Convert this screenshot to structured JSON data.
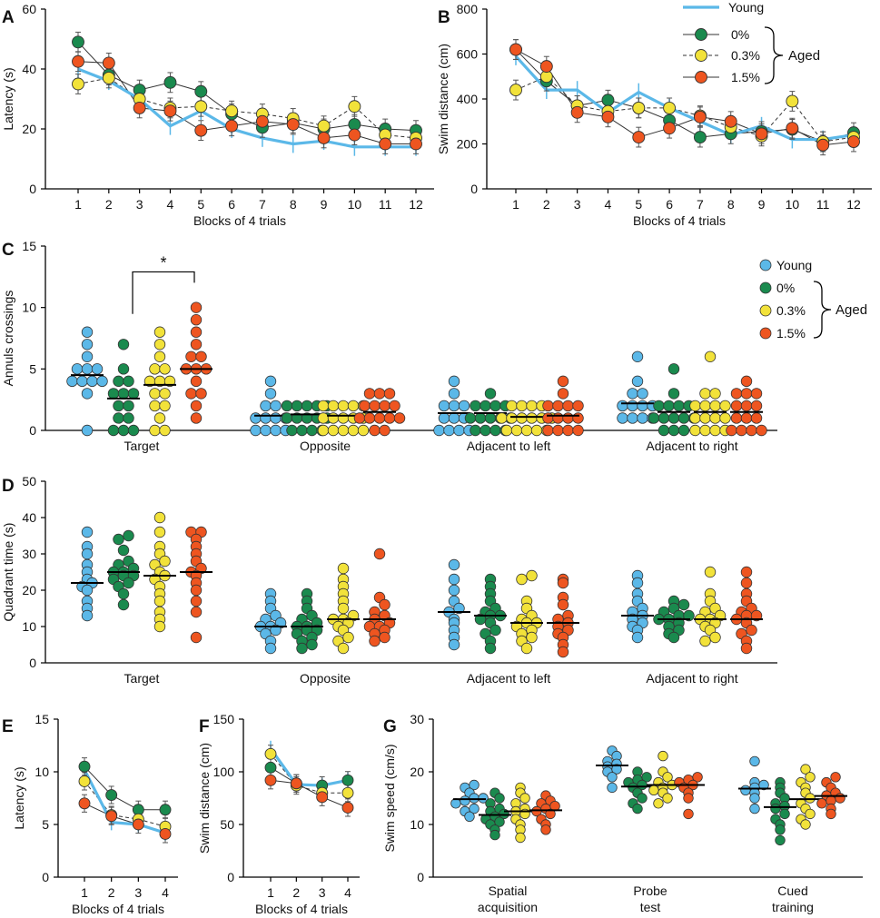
{
  "colors": {
    "young": "#5bb8e8",
    "aged0": "#1a8a4e",
    "aged03": "#f2e23a",
    "aged15": "#ee5520",
    "axis": "#000000",
    "text": "#111111"
  },
  "legend": {
    "young": "Young",
    "aged0": "0%",
    "aged03": "0.3%",
    "aged15": "1.5%",
    "aged_label": "Aged"
  },
  "chart_data": [
    {
      "panel": "A",
      "type": "line",
      "xlabel": "Blocks of 4 trials",
      "ylabel": "Latency (s)",
      "x": [
        1,
        2,
        3,
        4,
        5,
        6,
        7,
        8,
        9,
        10,
        11,
        12
      ],
      "ylim": [
        0,
        60
      ],
      "yticks": [
        0,
        20,
        40,
        60
      ],
      "series": [
        {
          "name": "Young",
          "values": [
            40,
            36,
            30,
            21,
            26,
            20,
            17,
            15,
            16,
            14,
            14,
            14
          ]
        },
        {
          "name": "0%",
          "values": [
            49,
            38,
            33,
            35.5,
            32.5,
            25,
            20.5,
            22,
            20,
            21.5,
            20,
            19.5
          ]
        },
        {
          "name": "0.3%",
          "values": [
            35,
            37,
            30,
            27,
            27.5,
            26,
            25,
            23.5,
            21,
            27.5,
            18,
            17
          ]
        },
        {
          "name": "1.5%",
          "values": [
            42.5,
            42,
            27,
            26,
            19.5,
            21,
            22.5,
            21.5,
            17,
            18,
            15,
            15
          ]
        }
      ]
    },
    {
      "panel": "B",
      "type": "line",
      "xlabel": "Blocks of 4 trials",
      "ylabel": "Swim distance (cm)",
      "x": [
        1,
        2,
        3,
        4,
        5,
        6,
        7,
        8,
        9,
        10,
        11,
        12
      ],
      "ylim": [
        0,
        800
      ],
      "yticks": [
        0,
        200,
        400,
        600,
        800
      ],
      "series": [
        {
          "name": "Young",
          "values": [
            590,
            440,
            440,
            340,
            430,
            360,
            300,
            240,
            280,
            220,
            220,
            240
          ]
        },
        {
          "name": "0%",
          "values": [
            620,
            480,
            370,
            395,
            360,
            305,
            230,
            245,
            255,
            265,
            210,
            250
          ]
        },
        {
          "name": "0.3%",
          "values": [
            440,
            500,
            370,
            345,
            360,
            360,
            325,
            275,
            235,
            390,
            210,
            230
          ]
        },
        {
          "name": "1.5%",
          "values": [
            620,
            545,
            340,
            320,
            230,
            270,
            320,
            300,
            245,
            270,
            195,
            210
          ]
        }
      ]
    },
    {
      "panel": "C",
      "type": "scatter",
      "ylabel": "Annuls crossings",
      "categories": [
        "Target",
        "Opposite",
        "Adjacent to left",
        "Adjacent to right"
      ],
      "ylim": [
        0,
        15
      ],
      "yticks": [
        0,
        5,
        10,
        15
      ],
      "significance": "*",
      "series": [
        {
          "name": "Young",
          "means": [
            4.5,
            1.2,
            1.4,
            2.2
          ],
          "points": [
            [
              0,
              3,
              4,
              4,
              4,
              4,
              5,
              5,
              5,
              6,
              7,
              8
            ],
            [
              0,
              0,
              0,
              0,
              1,
              1,
              1,
              1,
              2,
              2,
              3,
              4
            ],
            [
              0,
              0,
              0,
              0,
              1,
              1,
              1,
              2,
              2,
              2,
              3,
              4
            ],
            [
              1,
              1,
              1,
              1,
              2,
              2,
              2,
              2,
              3,
              3,
              4,
              6
            ]
          ]
        },
        {
          "name": "0%",
          "means": [
            2.6,
            1.3,
            1.4,
            1.5
          ],
          "points": [
            [
              0,
              0,
              0,
              1,
              1,
              2,
              2,
              3,
              3,
              3,
              4,
              4,
              5,
              7
            ],
            [
              0,
              0,
              0,
              0,
              1,
              1,
              1,
              1,
              1,
              2,
              2,
              2,
              2,
              2
            ],
            [
              0,
              0,
              0,
              0,
              1,
              1,
              1,
              1,
              1,
              2,
              2,
              2,
              2,
              3
            ],
            [
              0,
              0,
              0,
              1,
              1,
              1,
              1,
              1,
              2,
              2,
              2,
              2,
              3,
              5
            ]
          ]
        },
        {
          "name": "0.3%",
          "means": [
            3.7,
            1.2,
            1.1,
            1.5
          ],
          "points": [
            [
              0,
              0,
              1,
              2,
              2,
              3,
              3,
              4,
              4,
              4,
              5,
              5,
              6,
              7,
              8
            ],
            [
              0,
              0,
              0,
              0,
              0,
              1,
              1,
              1,
              1,
              1,
              2,
              2,
              2,
              2,
              2
            ],
            [
              0,
              0,
              0,
              0,
              0,
              1,
              1,
              1,
              1,
              1,
              1,
              2,
              2,
              2,
              2
            ],
            [
              0,
              0,
              0,
              0,
              1,
              1,
              1,
              1,
              2,
              2,
              2,
              2,
              3,
              3,
              6
            ]
          ]
        },
        {
          "name": "1.5%",
          "means": [
            5.0,
            1.5,
            1.2,
            1.5
          ],
          "points": [
            [
              1,
              2,
              3,
              3,
              4,
              5,
              5,
              5,
              6,
              6,
              7,
              8,
              9,
              10
            ],
            [
              0,
              0,
              1,
              1,
              1,
              1,
              1,
              2,
              2,
              2,
              2,
              3,
              3,
              3
            ],
            [
              0,
              0,
              0,
              0,
              1,
              1,
              1,
              1,
              2,
              2,
              2,
              2,
              3,
              4
            ],
            [
              0,
              0,
              0,
              0,
              1,
              1,
              1,
              2,
              2,
              2,
              3,
              3,
              3,
              4
            ]
          ]
        }
      ]
    },
    {
      "panel": "D",
      "type": "scatter",
      "ylabel": "Quadrant time (s)",
      "categories": [
        "Target",
        "Opposite",
        "Adjacent to left",
        "Adjacent to right"
      ],
      "ylim": [
        0,
        50
      ],
      "yticks": [
        0,
        10,
        20,
        30,
        40,
        50
      ],
      "series": [
        {
          "name": "Young",
          "means": [
            22,
            10,
            14,
            13
          ],
          "points": [
            [
              13,
              15,
              17,
              20,
              21,
              22,
              23,
              25,
              27,
              30,
              32,
              36
            ],
            [
              4,
              6,
              8,
              9,
              10,
              10,
              11,
              12,
              13,
              15,
              17,
              19
            ],
            [
              5,
              7,
              9,
              11,
              12,
              14,
              15,
              17,
              20,
              23,
              27
            ],
            [
              7,
              9,
              10,
              11,
              12,
              13,
              14,
              15,
              17,
              19,
              22,
              24
            ]
          ]
        },
        {
          "name": "0%",
          "means": [
            25,
            10,
            13,
            12
          ],
          "points": [
            [
              16,
              19,
              21,
              22,
              23,
              24,
              24,
              25,
              25,
              26,
              27,
              28,
              31,
              34,
              35
            ],
            [
              4,
              5,
              6,
              7,
              8,
              9,
              9,
              10,
              10,
              11,
              12,
              13,
              15,
              17,
              19
            ],
            [
              4,
              6,
              8,
              9,
              11,
              12,
              13,
              13,
              14,
              15,
              17,
              19,
              21,
              23
            ],
            [
              7,
              8,
              9,
              10,
              11,
              12,
              12,
              13,
              13,
              14,
              15,
              16,
              17
            ]
          ]
        },
        {
          "name": "0.3%",
          "means": [
            24,
            12,
            11,
            12
          ],
          "points": [
            [
              10,
              12,
              14,
              17,
              19,
              21,
              23,
              24,
              25,
              27,
              28,
              30,
              32,
              36,
              40
            ],
            [
              4,
              6,
              7,
              9,
              10,
              11,
              12,
              12,
              13,
              15,
              17,
              19,
              21,
              23,
              26
            ],
            [
              4,
              6,
              7,
              8,
              9,
              10,
              11,
              11,
              12,
              13,
              15,
              17,
              23,
              24
            ],
            [
              6,
              7,
              9,
              10,
              11,
              12,
              12,
              13,
              14,
              15,
              17,
              19,
              25
            ]
          ]
        },
        {
          "name": "1.5%",
          "means": [
            25,
            12,
            11,
            12
          ],
          "points": [
            [
              7,
              14,
              17,
              20,
              22,
              24,
              25,
              26,
              28,
              30,
              32,
              34,
              36,
              36
            ],
            [
              6,
              7,
              8,
              9,
              10,
              10,
              11,
              12,
              13,
              14,
              16,
              18,
              30
            ],
            [
              3,
              5,
              7,
              8,
              9,
              10,
              11,
              12,
              13,
              16,
              18,
              22,
              23
            ],
            [
              4,
              6,
              8,
              9,
              11,
              12,
              13,
              13,
              14,
              15,
              17,
              19,
              22,
              25
            ]
          ]
        }
      ]
    },
    {
      "panel": "E",
      "type": "line",
      "xlabel": "Blocks of 4 trials",
      "ylabel": "Latency (s)",
      "x": [
        1,
        2,
        3,
        4
      ],
      "ylim": [
        0,
        15
      ],
      "yticks": [
        0,
        5,
        10,
        15
      ],
      "series": [
        {
          "name": "Young",
          "values": [
            10.2,
            5.2,
            5.0,
            4.2
          ]
        },
        {
          "name": "0%",
          "values": [
            10.5,
            7.8,
            6.4,
            6.4
          ]
        },
        {
          "name": "0.3%",
          "values": [
            9.1,
            5.9,
            5.5,
            4.8
          ]
        },
        {
          "name": "1.5%",
          "values": [
            7.0,
            5.8,
            5.0,
            4.1
          ]
        }
      ]
    },
    {
      "panel": "F",
      "type": "line",
      "xlabel": "Blocks of 4 trials",
      "ylabel": "Swim distance (cm)",
      "x": [
        1,
        2,
        3,
        4
      ],
      "ylim": [
        0,
        150
      ],
      "yticks": [
        0,
        50,
        100,
        150
      ],
      "series": [
        {
          "name": "Young",
          "values": [
            122,
            88,
            87,
            92
          ]
        },
        {
          "name": "0%",
          "values": [
            104,
            89,
            87,
            92
          ]
        },
        {
          "name": "0.3%",
          "values": [
            117,
            87,
            80,
            80
          ]
        },
        {
          "name": "1.5%",
          "values": [
            92,
            89,
            76,
            66
          ]
        }
      ]
    },
    {
      "panel": "G",
      "type": "scatter",
      "ylabel": "Swim speed (cm/s)",
      "categories": [
        "Spatial acquisition",
        "Probe test",
        "Cued training"
      ],
      "ylim": [
        0,
        30
      ],
      "yticks": [
        0,
        10,
        20,
        30
      ],
      "series": [
        {
          "name": "Young",
          "means": [
            14.8,
            21.2,
            16.8
          ],
          "points": [
            [
              11.5,
              12.5,
              13,
              14,
              14.5,
              15,
              15,
              16,
              17,
              17.5
            ],
            [
              17,
              19,
              20,
              20.5,
              21,
              21.5,
              22,
              23,
              24
            ],
            [
              13,
              15,
              16,
              16.5,
              17,
              17.5,
              18,
              22
            ]
          ]
        },
        {
          "name": "0%",
          "means": [
            11.8,
            17.2,
            13.3
          ],
          "points": [
            [
              8,
              9,
              10,
              10.5,
              11,
              11.5,
              12,
              12.5,
              13,
              14,
              15,
              16
            ],
            [
              13,
              14,
              15,
              16,
              17,
              17.5,
              18,
              18.5,
              19,
              20
            ],
            [
              7,
              9,
              10,
              11,
              12,
              13,
              13.5,
              14,
              15,
              16,
              17,
              18
            ]
          ]
        },
        {
          "name": "0.3%",
          "means": [
            12.5,
            17.5,
            14.8
          ],
          "points": [
            [
              7.5,
              9,
              10,
              11,
              12,
              12.5,
              13,
              14,
              15,
              16,
              17
            ],
            [
              14,
              15,
              16,
              16.5,
              17,
              17.5,
              18,
              19,
              20,
              23
            ],
            [
              10,
              11,
              12,
              13,
              14,
              15,
              16,
              17,
              18,
              19,
              20.5
            ]
          ]
        },
        {
          "name": "1.5%",
          "means": [
            12.7,
            17.5,
            15.4
          ],
          "points": [
            [
              9,
              10,
              11,
              12,
              12.5,
              13,
              13.5,
              14,
              14.5,
              15.5
            ],
            [
              12,
              15,
              16,
              17,
              17.5,
              18,
              18.5,
              19
            ],
            [
              12,
              13,
              14,
              14.5,
              15,
              15.5,
              16,
              17,
              18,
              19
            ]
          ]
        }
      ]
    }
  ]
}
